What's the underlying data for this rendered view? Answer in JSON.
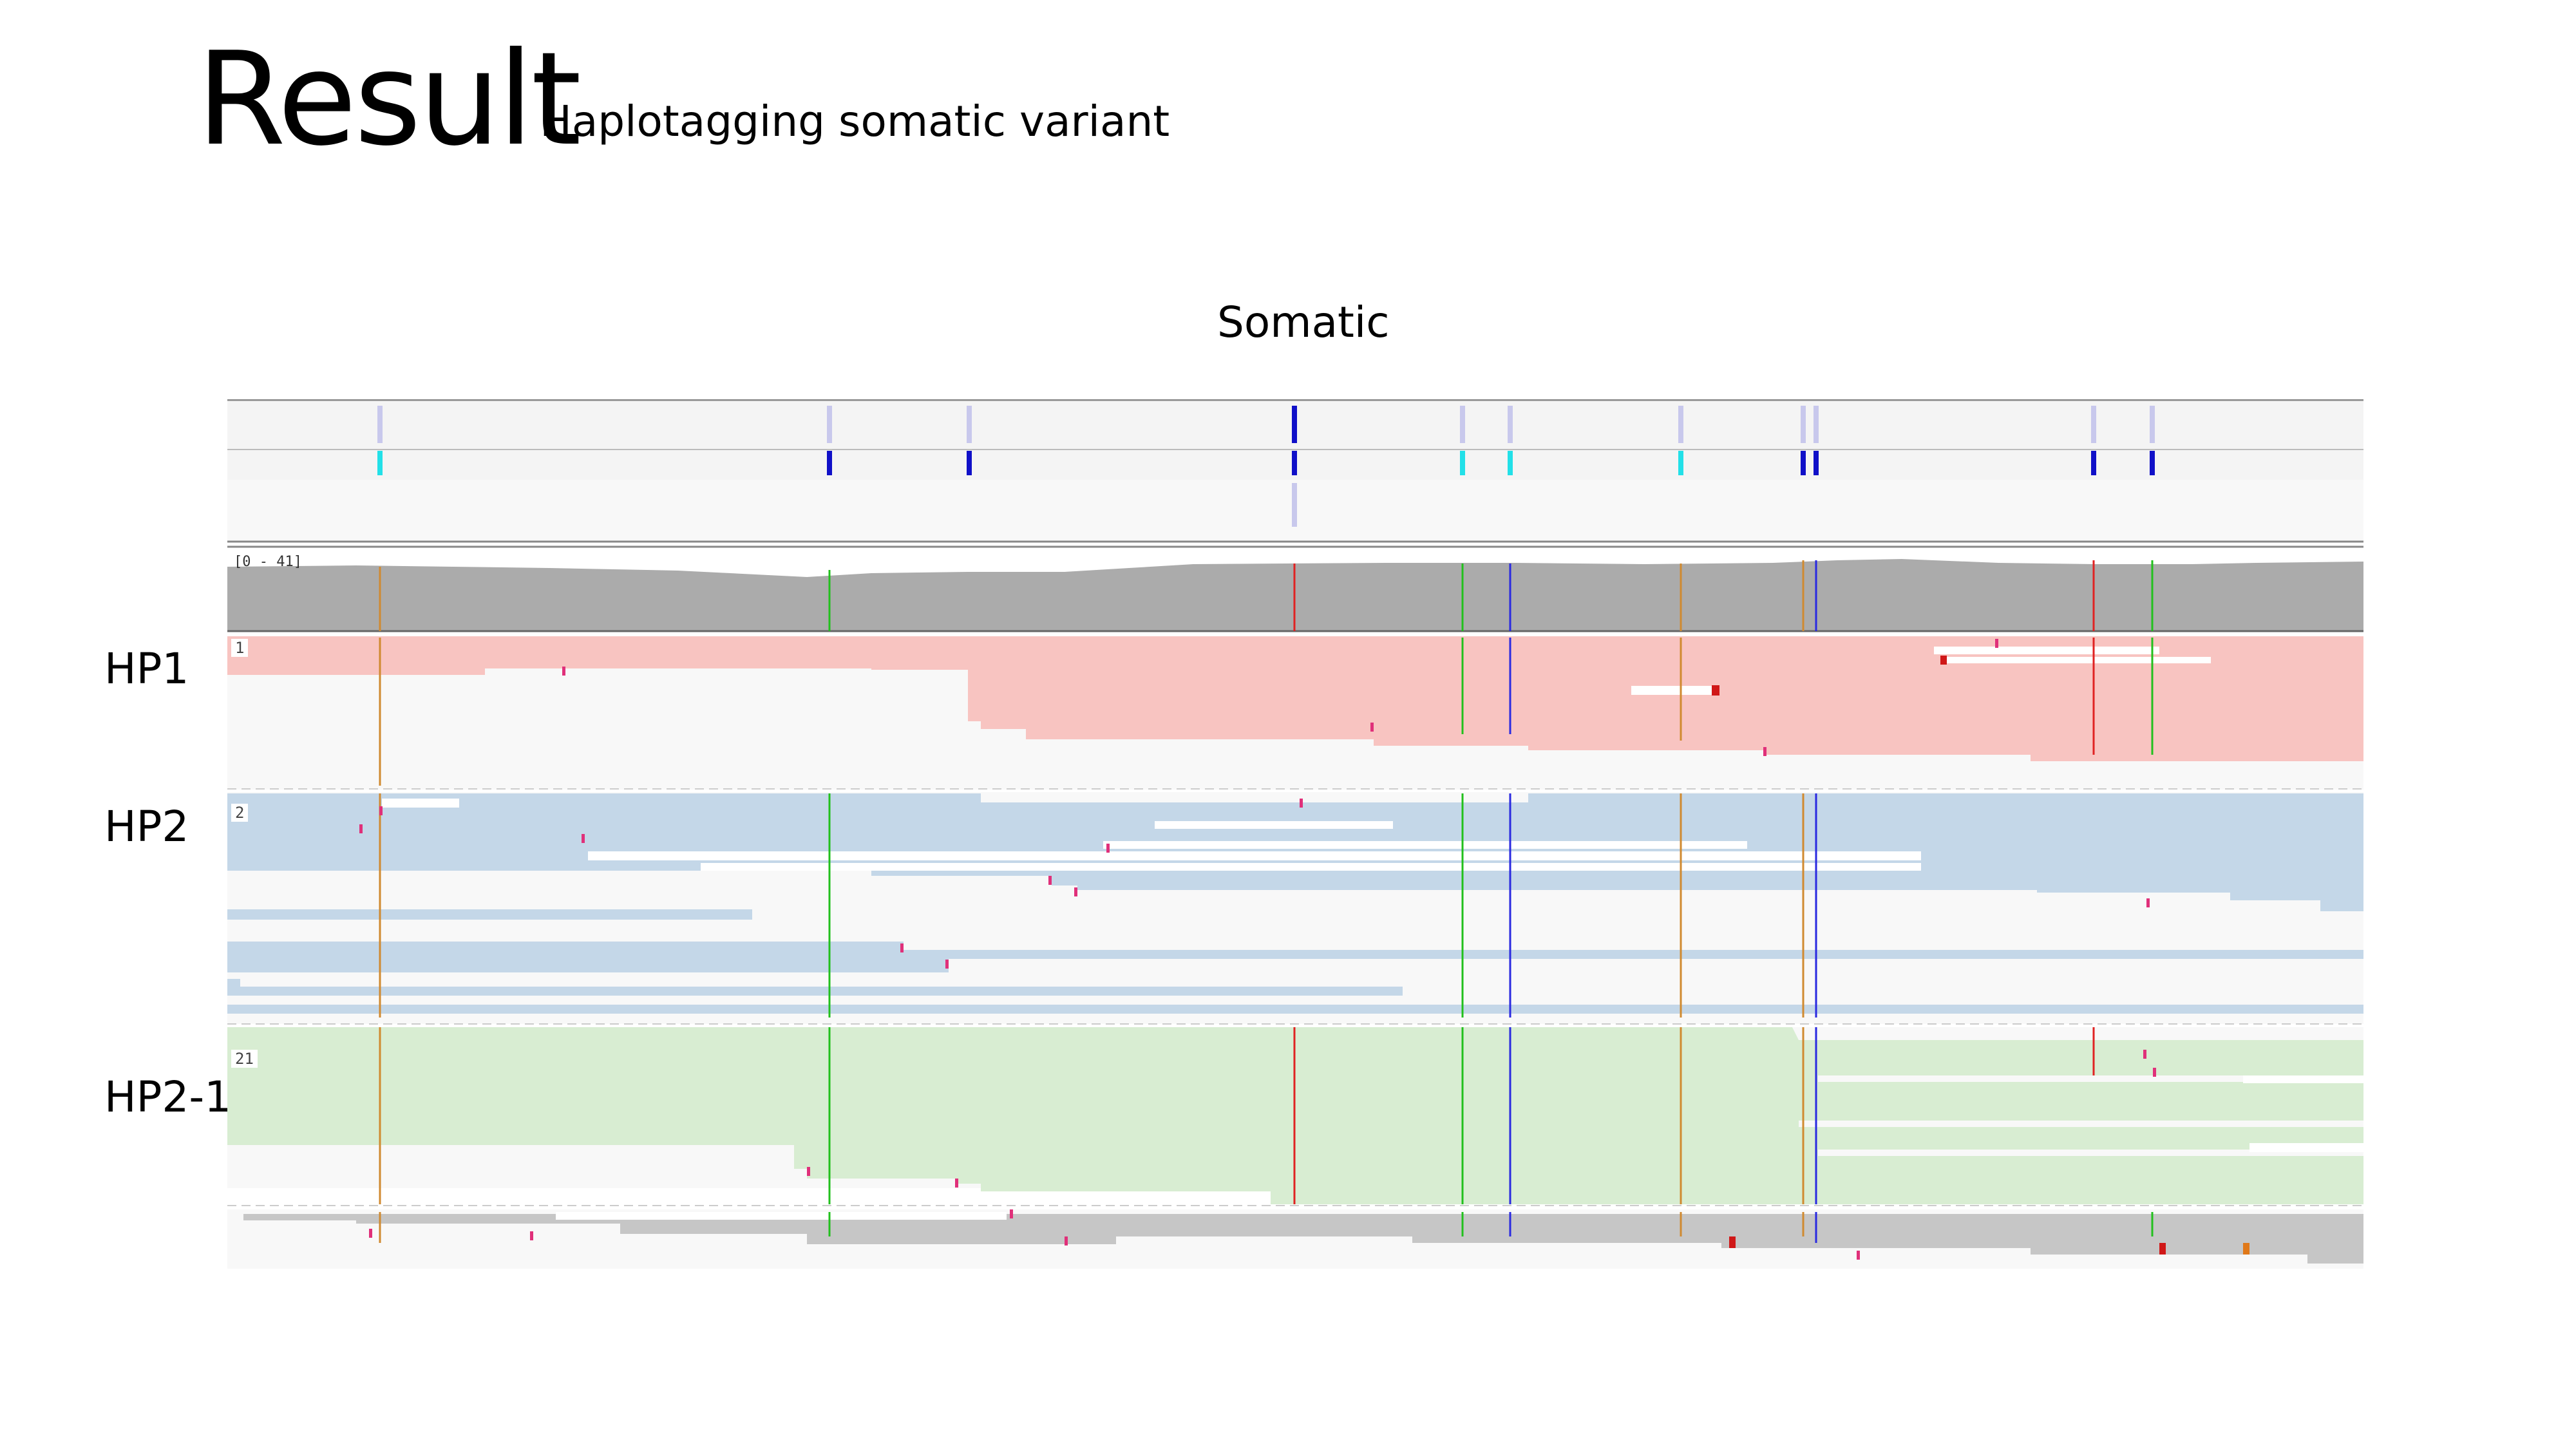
{
  "slide": {
    "title": "Result",
    "subtitle": ": Haplotagging somatic variant",
    "panel_title": "Somatic"
  },
  "tracks": {
    "coverage_range": "[0 - 41]",
    "groups": [
      {
        "name": "HP1",
        "badge": "1",
        "color": "#f8c4c1"
      },
      {
        "name": "HP2",
        "badge": "2",
        "color": "#c4d7e8"
      },
      {
        "name": "HP2-1",
        "badge": "21",
        "color": "#d8edd2"
      }
    ]
  },
  "colors": {
    "coverage": "#ababab",
    "unphased_read": "#c6c6c6",
    "allele_A": "#22c01d",
    "allele_C": "#2a2ae0",
    "allele_G": "#d08a30",
    "allele_T": "#e02222",
    "variant_light": "#c8c8ec",
    "variant_cyan": "#22e0e8",
    "variant_dark": "#1010c8"
  }
}
